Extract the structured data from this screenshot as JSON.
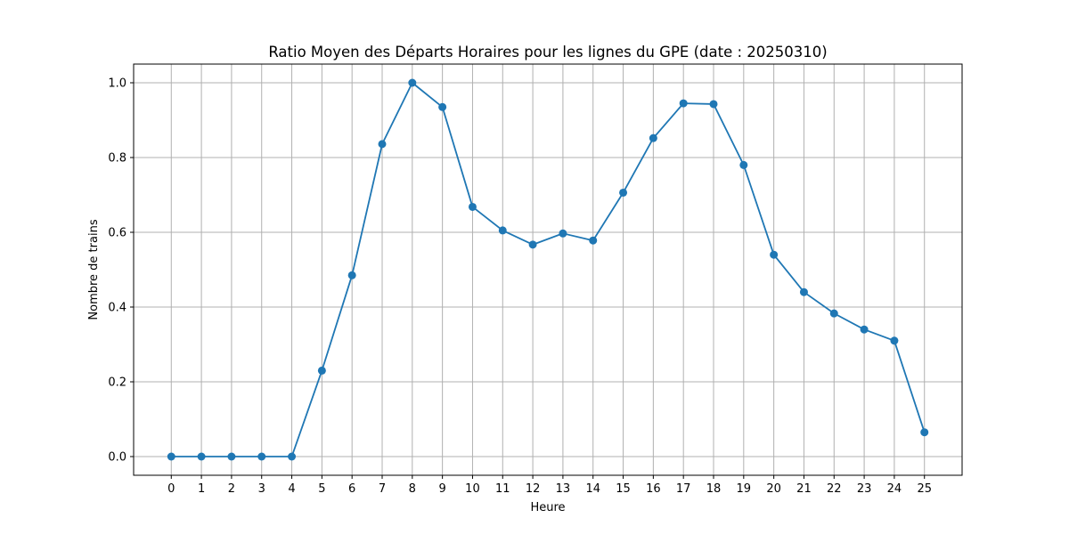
{
  "chart_data": {
    "type": "line",
    "title": "Ratio Moyen des Départs Horaires pour les lignes du GPE (date : 20250310)",
    "xlabel": "Heure",
    "ylabel": "Nombre de trains",
    "x": [
      0,
      1,
      2,
      3,
      4,
      5,
      6,
      7,
      8,
      9,
      10,
      11,
      12,
      13,
      14,
      15,
      16,
      17,
      18,
      19,
      20,
      21,
      22,
      23,
      24,
      25
    ],
    "series": [
      {
        "values": [
          0.0,
          0.0,
          0.0,
          0.0,
          0.0,
          0.23,
          0.485,
          0.836,
          1.0,
          0.935,
          0.668,
          0.605,
          0.567,
          0.597,
          0.578,
          0.706,
          0.852,
          0.945,
          0.943,
          0.78,
          0.54,
          0.44,
          0.383,
          0.34,
          0.31,
          0.065
        ]
      }
    ],
    "xticks": [
      "0",
      "1",
      "2",
      "3",
      "4",
      "5",
      "6",
      "7",
      "8",
      "9",
      "10",
      "11",
      "12",
      "13",
      "14",
      "15",
      "16",
      "17",
      "18",
      "19",
      "20",
      "21",
      "22",
      "23",
      "24",
      "25"
    ],
    "yticks": [
      "0.0",
      "0.2",
      "0.4",
      "0.6",
      "0.8",
      "1.0"
    ],
    "xlim": [
      -1.25,
      26.25
    ],
    "ylim": [
      -0.05,
      1.05
    ],
    "grid": true,
    "color": "#1f77b4"
  }
}
